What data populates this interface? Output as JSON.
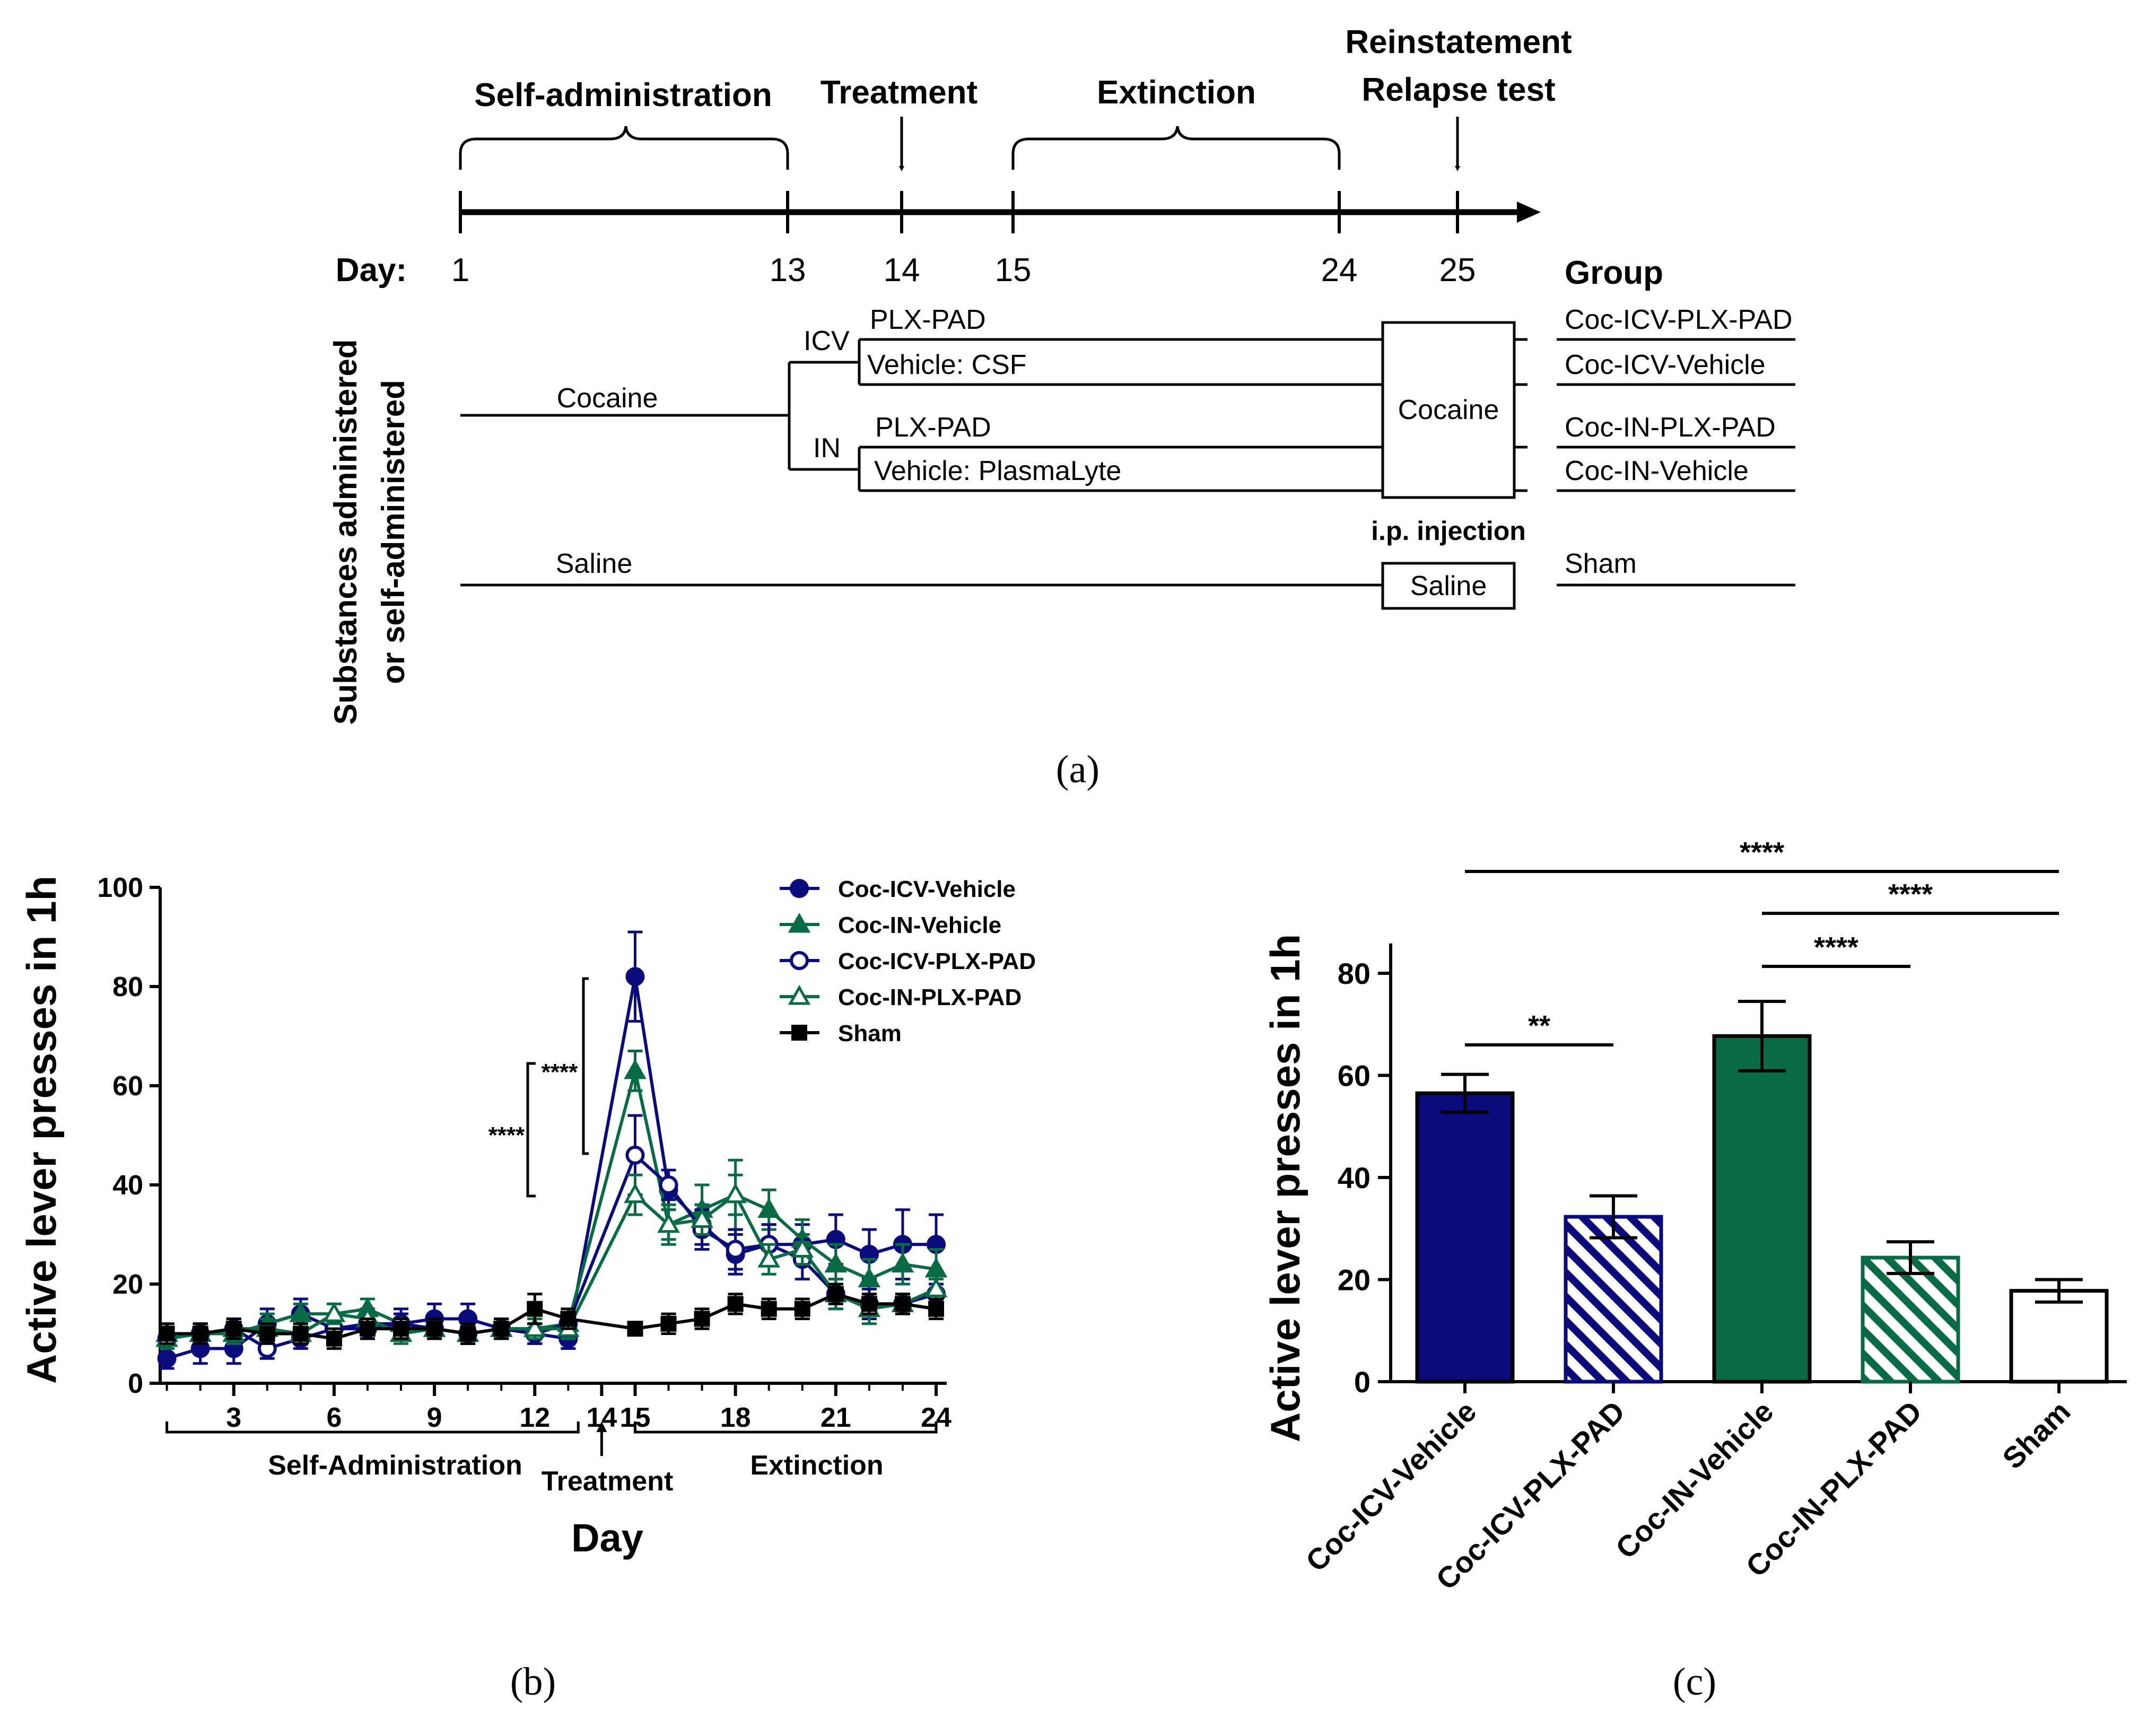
{
  "colors": {
    "navy": "#0a0a7d",
    "green": "#086b43",
    "black": "#000000",
    "white": "#ffffff"
  },
  "panels": {
    "a": "(a)",
    "b": "(b)",
    "c": "(c)"
  },
  "timeline": {
    "phases": {
      "self_administration": "Self-administration",
      "treatment": "Treatment",
      "extinction": "Extinction",
      "reinstatement": "Reinstatement",
      "relapse": "Relapse test"
    },
    "day_label": "Day:",
    "days": [
      "1",
      "13",
      "14",
      "15",
      "24",
      "25"
    ],
    "group_header": "Group",
    "side_label_1": "Substances administered",
    "side_label_2": "or self-administered",
    "cocaine": "Cocaine",
    "saline": "Saline",
    "icv": "ICV",
    "in": "IN",
    "plx_pad_icv": "PLX-PAD",
    "vehicle_csf": "Vehicle: CSF",
    "plx_pad_in": "PLX-PAD",
    "vehicle_plasmalyte": "Vehicle: PlasmaLyte",
    "box_cocaine": "Cocaine",
    "ip_injection": "i.p. injection",
    "box_saline": "Saline",
    "groups": [
      "Coc-ICV-PLX-PAD",
      "Coc-ICV-Vehicle",
      "Coc-IN-PLX-PAD",
      "Coc-IN-Vehicle",
      "Sham"
    ]
  },
  "chart_data": [
    {
      "type": "line",
      "ylabel": "Active lever presses in 1h",
      "xlabel": "Day",
      "ylim": [
        0,
        100
      ],
      "yticks": [
        "0",
        "20",
        "40",
        "60",
        "80",
        "100"
      ],
      "xticks": [
        "3",
        "6",
        "9",
        "12",
        "14",
        "15",
        "18",
        "21",
        "24"
      ],
      "xticks_values": [
        3,
        6,
        9,
        12,
        14,
        15,
        18,
        21,
        24
      ],
      "x": [
        1,
        2,
        3,
        4,
        5,
        6,
        7,
        8,
        9,
        10,
        11,
        12,
        13,
        15,
        16,
        17,
        18,
        19,
        20,
        21,
        22,
        23,
        24
      ],
      "series": [
        {
          "name": "Coc-ICV-Vehicle",
          "color": "#0a0a7d",
          "marker": "circle-filled",
          "values": [
            5,
            7,
            7,
            12,
            14,
            11,
            12,
            12,
            13,
            13,
            11,
            10,
            9,
            82,
            39,
            32,
            26,
            28,
            28,
            29,
            26,
            28,
            28
          ],
          "errors": [
            2,
            3,
            3,
            3,
            3,
            2,
            3,
            3,
            3,
            3,
            2,
            2,
            2,
            9,
            4,
            4,
            4,
            4,
            4,
            5,
            5,
            7,
            6
          ]
        },
        {
          "name": "Coc-IN-Vehicle",
          "color": "#086b43",
          "marker": "triangle-filled",
          "values": [
            10,
            10,
            10,
            12,
            14,
            14,
            15,
            12,
            11,
            10,
            11,
            11,
            12,
            63,
            32,
            35,
            38,
            35,
            29,
            24,
            21,
            24,
            23
          ],
          "errors": [
            2,
            2,
            2,
            2,
            2,
            2,
            2,
            2,
            2,
            2,
            2,
            2,
            2,
            4,
            4,
            5,
            7,
            4,
            4,
            4,
            4,
            4,
            4
          ]
        },
        {
          "name": "Coc-ICV-PLX-PAD",
          "color": "#0a0a7d",
          "marker": "circle-open",
          "values": [
            9,
            10,
            11,
            7,
            9,
            11,
            11,
            12,
            11,
            10,
            11,
            10,
            12,
            46,
            40,
            31,
            27,
            28,
            25,
            18,
            16,
            16,
            18
          ],
          "errors": [
            2,
            2,
            2,
            2,
            2,
            2,
            2,
            2,
            2,
            2,
            2,
            2,
            2,
            8,
            3,
            4,
            4,
            4,
            4,
            3,
            3,
            2,
            2
          ]
        },
        {
          "name": "Coc-IN-PLX-PAD",
          "color": "#086b43",
          "marker": "triangle-open",
          "values": [
            9,
            10,
            11,
            11,
            10,
            14,
            13,
            10,
            11,
            10,
            11,
            11,
            11,
            38,
            32,
            33,
            38,
            25,
            27,
            18,
            15,
            16,
            19
          ],
          "errors": [
            2,
            2,
            2,
            2,
            2,
            2,
            2,
            2,
            2,
            2,
            2,
            2,
            2,
            4,
            3,
            3,
            4,
            3,
            3,
            3,
            3,
            2,
            2
          ]
        },
        {
          "name": "Sham",
          "color": "#000000",
          "marker": "square-filled",
          "values": [
            10,
            10,
            11,
            10,
            10,
            9,
            11,
            11,
            11,
            10,
            11,
            15,
            13,
            11,
            12,
            13,
            16,
            15,
            15,
            18,
            16,
            16,
            15
          ],
          "errors": [
            2,
            2,
            2,
            2,
            2,
            2,
            2,
            2,
            2,
            2,
            2,
            3,
            2,
            1,
            2,
            2,
            2,
            2,
            2,
            2,
            2,
            2,
            2
          ]
        }
      ],
      "phase_labels": [
        "Self-Administration",
        "Treatment",
        "Extinction"
      ],
      "significance": [
        "****",
        "****"
      ]
    },
    {
      "type": "bar",
      "ylabel": "Active lever presses in 1h",
      "ylim": [
        0,
        90
      ],
      "yticks": [
        "0",
        "20",
        "40",
        "60",
        "80"
      ],
      "categories": [
        "Coc-ICV-Vehicle",
        "Coc-ICV-PLX-PAD",
        "Coc-IN-Vehicle",
        "Coc-IN-PLX-PAD",
        "Sham"
      ],
      "values": [
        56.5,
        32.3,
        67.7,
        24.3,
        17.8
      ],
      "errors": [
        3.7,
        4.1,
        6.8,
        3.1,
        2.2
      ],
      "fills": [
        "solid-navy",
        "hatch-navy",
        "solid-green",
        "hatch-green",
        "white"
      ],
      "comparisons": [
        {
          "label": "****",
          "from": 0,
          "to": 4
        },
        {
          "label": "****",
          "from": 2,
          "to": 4
        },
        {
          "label": "****",
          "from": 2,
          "to": 3
        },
        {
          "label": "**",
          "from": 0,
          "to": 1
        }
      ]
    }
  ]
}
